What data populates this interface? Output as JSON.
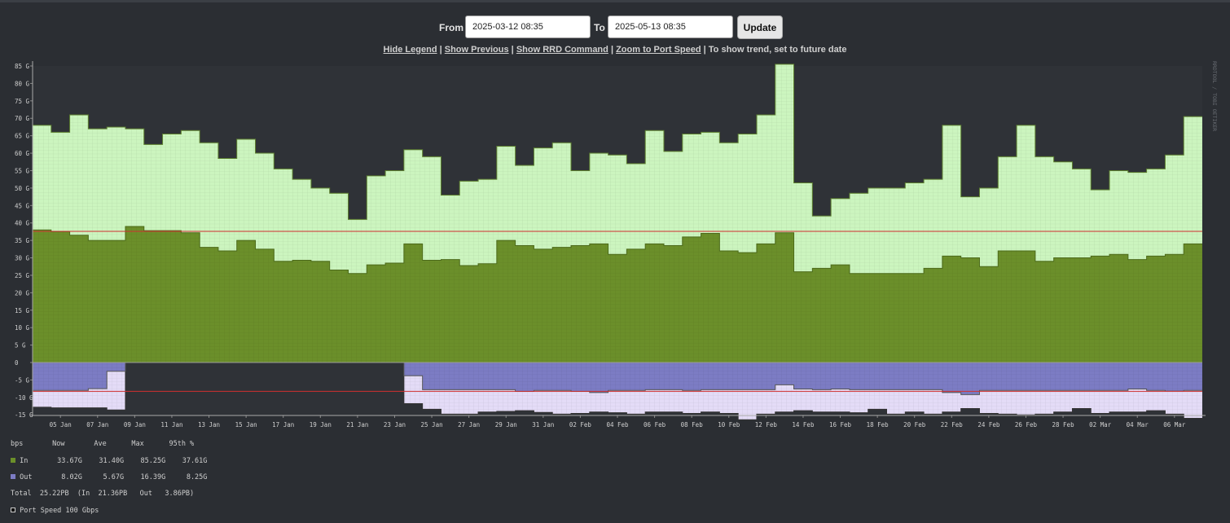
{
  "controls": {
    "from_label": "From",
    "from_value": "2025-03-12 08:35",
    "to_label": "To",
    "to_value": "2025-05-13 08:35",
    "update_label": "Update"
  },
  "links": {
    "hide_legend": "Hide Legend",
    "show_previous": "Show Previous",
    "show_rrd": "Show RRD Command",
    "zoom_port": "Zoom to Port Speed",
    "trend_note": "| To show trend, set to future date"
  },
  "watermark": "RRDTOOL / TOBI OETIKER",
  "legend": {
    "header": "bps       Now       Ave      Max      95th %",
    "in_row": "In       33.67G    31.40G    85.25G    37.61G",
    "out_row": "Out       8.02G     5.67G    16.39G     8.25G",
    "total_row": "Total  25.22PB  (In  21.36PB   Out   3.86PB)",
    "port_row": "Port Speed 100 Gbps"
  },
  "colors": {
    "background": "#2b2e33",
    "plot_grid": "#6a8a6a",
    "in_total": "#ccf5bf",
    "in_fill": "#6b8f2a",
    "out_fill": "#7c7cc4",
    "out_total": "#e4dcf7",
    "p95_line": "#d03030"
  },
  "chart_data": {
    "type": "area",
    "y_axis_unit": "bps",
    "ylim": [
      -15,
      85
    ],
    "y_ticks": [
      "85 G",
      "80 G",
      "75 G",
      "70 G",
      "65 G",
      "60 G",
      "55 G",
      "50 G",
      "45 G",
      "40 G",
      "35 G",
      "30 G",
      "25 G",
      "20 G",
      "15 G",
      "10 G",
      "5 G",
      "0",
      "-5 G",
      "-10 G",
      "-15 G"
    ],
    "y_tick_values": [
      85,
      80,
      75,
      70,
      65,
      60,
      55,
      50,
      45,
      40,
      35,
      30,
      25,
      20,
      15,
      10,
      5,
      0,
      -5,
      -10,
      -15
    ],
    "x_ticks": [
      "05 Jan",
      "07 Jan",
      "09 Jan",
      "11 Jan",
      "13 Jan",
      "15 Jan",
      "17 Jan",
      "19 Jan",
      "21 Jan",
      "23 Jan",
      "25 Jan",
      "27 Jan",
      "29 Jan",
      "31 Jan",
      "02 Feb",
      "04 Feb",
      "06 Feb",
      "08 Feb",
      "10 Feb",
      "12 Feb",
      "14 Feb",
      "16 Feb",
      "18 Feb",
      "20 Feb",
      "22 Feb",
      "24 Feb",
      "26 Feb",
      "28 Feb",
      "02 Mar",
      "04 Mar",
      "06 Mar"
    ],
    "x_start": "2025-01-04",
    "bucket_days": 1,
    "grid": true,
    "p95_in": 37.61,
    "p95_out": 8.25,
    "series": [
      {
        "name": "In",
        "kind": "line-top",
        "values": [
          68,
          66,
          71,
          67,
          67.5,
          67,
          62.5,
          65.5,
          66.5,
          63,
          58.5,
          64,
          60,
          55.5,
          52.5,
          50,
          48.5,
          41,
          53.5,
          55,
          61,
          59,
          48,
          52,
          52.5,
          62,
          56.5,
          61.5,
          63,
          55,
          60,
          59.5,
          57,
          66.5,
          60.5,
          65.5,
          66,
          63,
          65.5,
          71,
          85.5,
          51.5,
          42,
          47,
          48.5,
          50,
          50,
          51.5,
          52.5,
          68,
          47.5,
          50,
          59,
          68,
          59,
          57.5,
          55.5,
          49.5,
          55,
          54.5,
          55.5,
          59.5,
          70.5
        ]
      },
      {
        "name": "In",
        "kind": "area",
        "values": [
          38,
          37.5,
          36.5,
          35,
          35,
          39,
          37.8,
          37.8,
          37.2,
          33,
          32,
          35,
          32.5,
          29,
          29.3,
          29,
          26.5,
          25.5,
          28,
          28.5,
          34,
          29.3,
          29.5,
          27.8,
          28.3,
          35,
          33.5,
          32.5,
          33,
          33.5,
          34,
          31,
          32.5,
          34,
          33.5,
          36,
          37,
          32,
          31.5,
          34,
          37.2,
          26,
          27,
          28,
          25.5,
          25.5,
          25.5,
          25.5,
          27,
          30.5,
          30,
          27.5,
          32,
          32,
          29,
          30,
          30,
          30.5,
          31,
          29.5,
          30.5,
          31,
          34
        ]
      },
      {
        "name": "Out",
        "kind": "area",
        "values": [
          -8,
          -8,
          -8,
          -7.5,
          -2.5,
          0,
          0,
          0,
          0,
          0,
          0,
          0,
          0,
          0,
          0,
          0,
          0,
          0,
          0,
          0,
          -3.8,
          -7.8,
          -7.8,
          -7.8,
          -7.8,
          -7.8,
          -8.3,
          -8,
          -8,
          -8.3,
          -8.6,
          -8,
          -8,
          -7.8,
          -7.8,
          -8,
          -7.8,
          -7.8,
          -7.8,
          -7.8,
          -6.4,
          -7.6,
          -7.8,
          -7.6,
          -7.8,
          -7.8,
          -7.8,
          -7.8,
          -7.8,
          -8.6,
          -9.2,
          -8,
          -8,
          -8,
          -8,
          -8,
          -8,
          -8,
          -8,
          -7.6,
          -8,
          -8.2,
          -8
        ]
      },
      {
        "name": "Out",
        "kind": "line-bottom",
        "values": [
          -12.8,
          -13,
          -13,
          -13,
          -13.6,
          0,
          0,
          0,
          0,
          0,
          0,
          0,
          0,
          0,
          0,
          0,
          0,
          0,
          0,
          0,
          -11.8,
          -13.4,
          -14.8,
          -14.8,
          -14.2,
          -14,
          -13.8,
          -14.3,
          -14.8,
          -14.6,
          -14.2,
          -14.4,
          -14.8,
          -14.2,
          -14.2,
          -14.6,
          -14.2,
          -14.6,
          -16.4,
          -14.8,
          -14.2,
          -13.8,
          -14.2,
          -14.2,
          -14.4,
          -13.4,
          -14.8,
          -14.2,
          -14.8,
          -14.2,
          -13.2,
          -14.6,
          -14.8,
          -15,
          -14.8,
          -14.2,
          -13.2,
          -14.6,
          -14.2,
          -14.2,
          -13.8,
          -14.8,
          -16
        ]
      }
    ]
  }
}
